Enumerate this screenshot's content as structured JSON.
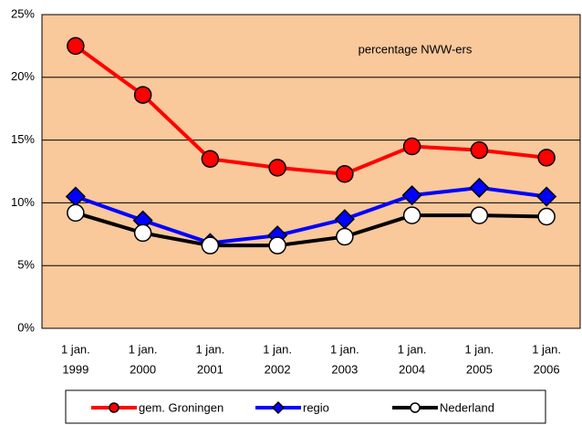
{
  "chart_data": {
    "type": "line",
    "annotation": "percentage NWW-ers",
    "categories": [
      [
        "1 jan.",
        "1999"
      ],
      [
        "1 jan.",
        "2000"
      ],
      [
        "1 jan.",
        "2001"
      ],
      [
        "1 jan.",
        "2002"
      ],
      [
        "1 jan.",
        "2003"
      ],
      [
        "1 jan.",
        "2004"
      ],
      [
        "1 jan.",
        "2005"
      ],
      [
        "1 jan.",
        "2006"
      ]
    ],
    "series": [
      {
        "name": "gem. Groningen",
        "color": "#ff0000",
        "marker": "circle",
        "values": [
          22.5,
          18.6,
          13.5,
          12.8,
          12.3,
          14.5,
          14.2,
          13.6
        ]
      },
      {
        "name": "regio",
        "color": "#0000ff",
        "marker": "diamond",
        "values": [
          10.5,
          8.6,
          6.8,
          7.4,
          8.7,
          10.6,
          11.2,
          10.5
        ]
      },
      {
        "name": "Nederland",
        "color": "#000000",
        "marker": "open-circle",
        "values": [
          9.2,
          7.6,
          6.6,
          6.6,
          7.3,
          9.0,
          9.0,
          8.9
        ]
      }
    ],
    "ylim": [
      0,
      25
    ],
    "yticks": [
      {
        "value": 0,
        "label": "0%"
      },
      {
        "value": 5,
        "label": "5%"
      },
      {
        "value": 10,
        "label": "10%"
      },
      {
        "value": 15,
        "label": "15%"
      },
      {
        "value": 20,
        "label": "20%"
      },
      {
        "value": 25,
        "label": "25%"
      }
    ],
    "grid": true,
    "legend": "bottom",
    "background": "#f9c89b"
  }
}
